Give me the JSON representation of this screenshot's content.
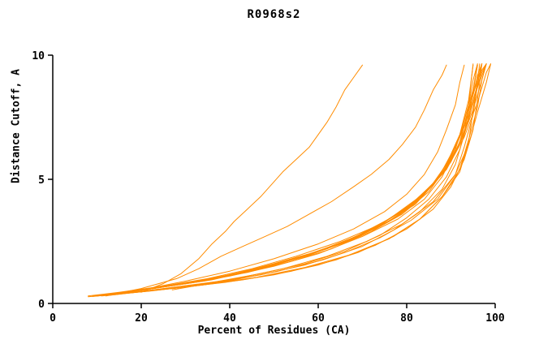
{
  "chart_data": {
    "type": "line",
    "title": "R0968s2",
    "xlabel": "Percent of Residues (CA)",
    "ylabel": "Distance Cutoff, A",
    "xlim": [
      0,
      100
    ],
    "ylim": [
      0,
      10
    ],
    "x_ticks": [
      0,
      20,
      40,
      60,
      80,
      100
    ],
    "y_ticks": [
      0,
      5,
      10
    ],
    "grid": false,
    "legend": "none",
    "line_color": "#ff8c00",
    "axis_color": "#000000",
    "series": [
      [
        [
          20,
          0.45
        ],
        [
          25,
          0.8
        ],
        [
          29,
          1.2
        ],
        [
          33,
          1.8
        ],
        [
          36,
          2.4
        ],
        [
          39,
          2.9
        ],
        [
          41,
          3.3
        ],
        [
          44,
          3.8
        ],
        [
          47,
          4.3
        ],
        [
          50,
          4.9
        ],
        [
          52,
          5.3
        ],
        [
          55,
          5.8
        ],
        [
          58,
          6.3
        ],
        [
          60,
          6.8
        ],
        [
          62,
          7.3
        ],
        [
          64,
          7.9
        ],
        [
          66,
          8.6
        ],
        [
          68,
          9.1
        ],
        [
          70,
          9.6
        ]
      ],
      [
        [
          13,
          0.35
        ],
        [
          20,
          0.6
        ],
        [
          28,
          1.0
        ],
        [
          33,
          1.4
        ],
        [
          38,
          1.9
        ],
        [
          43,
          2.3
        ],
        [
          48,
          2.7
        ],
        [
          53,
          3.1
        ],
        [
          58,
          3.6
        ],
        [
          63,
          4.1
        ],
        [
          68,
          4.7
        ],
        [
          72,
          5.2
        ],
        [
          76,
          5.8
        ],
        [
          79,
          6.4
        ],
        [
          82,
          7.1
        ],
        [
          84,
          7.8
        ],
        [
          86,
          8.6
        ],
        [
          88,
          9.2
        ],
        [
          89,
          9.6
        ]
      ],
      [
        [
          12,
          0.3
        ],
        [
          20,
          0.55
        ],
        [
          30,
          0.9
        ],
        [
          40,
          1.3
        ],
        [
          50,
          1.8
        ],
        [
          60,
          2.4
        ],
        [
          68,
          3.0
        ],
        [
          75,
          3.7
        ],
        [
          80,
          4.4
        ],
        [
          84,
          5.2
        ],
        [
          87,
          6.1
        ],
        [
          89,
          7.0
        ],
        [
          91,
          8.0
        ],
        [
          92,
          8.9
        ],
        [
          93,
          9.6
        ]
      ],
      [
        [
          8,
          0.3
        ],
        [
          15,
          0.45
        ],
        [
          25,
          0.7
        ],
        [
          35,
          1.0
        ],
        [
          45,
          1.4
        ],
        [
          55,
          1.9
        ],
        [
          65,
          2.5
        ],
        [
          73,
          3.1
        ],
        [
          80,
          3.8
        ],
        [
          85,
          4.6
        ],
        [
          89,
          5.6
        ],
        [
          92,
          6.8
        ],
        [
          94,
          8.2
        ],
        [
          95,
          9.6
        ]
      ],
      [
        [
          9,
          0.3
        ],
        [
          18,
          0.5
        ],
        [
          28,
          0.75
        ],
        [
          38,
          1.05
        ],
        [
          48,
          1.45
        ],
        [
          58,
          1.95
        ],
        [
          67,
          2.55
        ],
        [
          75,
          3.2
        ],
        [
          82,
          4.0
        ],
        [
          87,
          5.0
        ],
        [
          90,
          6.0
        ],
        [
          93,
          7.2
        ],
        [
          95,
          8.5
        ],
        [
          96,
          9.6
        ]
      ],
      [
        [
          10,
          0.32
        ],
        [
          20,
          0.55
        ],
        [
          30,
          0.8
        ],
        [
          40,
          1.1
        ],
        [
          50,
          1.5
        ],
        [
          60,
          2.0
        ],
        [
          70,
          2.7
        ],
        [
          78,
          3.4
        ],
        [
          84,
          4.2
        ],
        [
          88,
          5.1
        ],
        [
          91,
          6.2
        ],
        [
          93,
          7.4
        ],
        [
          95,
          8.6
        ],
        [
          96,
          9.6
        ]
      ],
      [
        [
          11,
          0.33
        ],
        [
          22,
          0.6
        ],
        [
          33,
          0.9
        ],
        [
          44,
          1.25
        ],
        [
          54,
          1.7
        ],
        [
          63,
          2.2
        ],
        [
          72,
          2.9
        ],
        [
          79,
          3.6
        ],
        [
          85,
          4.5
        ],
        [
          89,
          5.5
        ],
        [
          92,
          6.7
        ],
        [
          94,
          8.0
        ],
        [
          95,
          9.0
        ],
        [
          96,
          9.65
        ]
      ],
      [
        [
          12,
          0.35
        ],
        [
          24,
          0.65
        ],
        [
          36,
          1.0
        ],
        [
          46,
          1.4
        ],
        [
          56,
          1.85
        ],
        [
          65,
          2.4
        ],
        [
          74,
          3.1
        ],
        [
          81,
          3.9
        ],
        [
          86,
          4.8
        ],
        [
          90,
          5.9
        ],
        [
          93,
          7.1
        ],
        [
          95,
          8.4
        ],
        [
          96,
          9.2
        ],
        [
          97,
          9.65
        ]
      ],
      [
        [
          13,
          0.35
        ],
        [
          26,
          0.7
        ],
        [
          38,
          1.05
        ],
        [
          48,
          1.5
        ],
        [
          58,
          2.0
        ],
        [
          68,
          2.6
        ],
        [
          76,
          3.3
        ],
        [
          83,
          4.2
        ],
        [
          88,
          5.2
        ],
        [
          91,
          6.3
        ],
        [
          94,
          7.6
        ],
        [
          96,
          8.8
        ],
        [
          97,
          9.65
        ]
      ],
      [
        [
          14,
          0.38
        ],
        [
          28,
          0.75
        ],
        [
          40,
          1.15
        ],
        [
          50,
          1.6
        ],
        [
          60,
          2.1
        ],
        [
          70,
          2.8
        ],
        [
          78,
          3.5
        ],
        [
          84,
          4.4
        ],
        [
          89,
          5.4
        ],
        [
          92,
          6.5
        ],
        [
          94,
          7.8
        ],
        [
          96,
          9.0
        ],
        [
          97,
          9.65
        ]
      ],
      [
        [
          15,
          0.4
        ],
        [
          30,
          0.8
        ],
        [
          42,
          1.2
        ],
        [
          52,
          1.65
        ],
        [
          62,
          2.2
        ],
        [
          71,
          2.9
        ],
        [
          79,
          3.7
        ],
        [
          85,
          4.6
        ],
        [
          90,
          5.7
        ],
        [
          93,
          6.9
        ],
        [
          95,
          8.2
        ],
        [
          97,
          9.3
        ],
        [
          98,
          9.65
        ]
      ],
      [
        [
          16,
          0.42
        ],
        [
          32,
          0.85
        ],
        [
          44,
          1.3
        ],
        [
          54,
          1.75
        ],
        [
          64,
          2.35
        ],
        [
          73,
          3.05
        ],
        [
          80,
          3.85
        ],
        [
          86,
          4.8
        ],
        [
          90,
          5.9
        ],
        [
          93,
          7.2
        ],
        [
          95,
          8.5
        ],
        [
          97,
          9.4
        ],
        [
          98,
          9.65
        ]
      ],
      [
        [
          17,
          0.45
        ],
        [
          34,
          0.9
        ],
        [
          46,
          1.35
        ],
        [
          56,
          1.85
        ],
        [
          66,
          2.45
        ],
        [
          74,
          3.15
        ],
        [
          81,
          4.0
        ],
        [
          87,
          5.0
        ],
        [
          91,
          6.1
        ],
        [
          94,
          7.4
        ],
        [
          96,
          8.7
        ],
        [
          98,
          9.65
        ]
      ],
      [
        [
          18,
          0.48
        ],
        [
          36,
          0.95
        ],
        [
          48,
          1.45
        ],
        [
          58,
          1.95
        ],
        [
          67,
          2.55
        ],
        [
          75,
          3.3
        ],
        [
          82,
          4.1
        ],
        [
          88,
          5.2
        ],
        [
          92,
          6.4
        ],
        [
          95,
          7.8
        ],
        [
          97,
          9.0
        ],
        [
          98,
          9.65
        ]
      ],
      [
        [
          19,
          0.5
        ],
        [
          37,
          1.0
        ],
        [
          49,
          1.5
        ],
        [
          59,
          2.05
        ],
        [
          68,
          2.65
        ],
        [
          76,
          3.4
        ],
        [
          83,
          4.3
        ],
        [
          89,
          5.4
        ],
        [
          93,
          6.7
        ],
        [
          96,
          8.1
        ],
        [
          98,
          9.3
        ],
        [
          99,
          9.65
        ]
      ],
      [
        [
          27,
          0.55
        ],
        [
          40,
          0.95
        ],
        [
          52,
          1.4
        ],
        [
          62,
          1.9
        ],
        [
          71,
          2.5
        ],
        [
          79,
          3.2
        ],
        [
          86,
          4.1
        ],
        [
          91,
          5.2
        ],
        [
          94,
          6.4
        ],
        [
          96,
          7.7
        ],
        [
          98,
          8.9
        ],
        [
          99,
          9.65
        ]
      ],
      [
        [
          10,
          0.3
        ],
        [
          22,
          0.5
        ],
        [
          34,
          0.75
        ],
        [
          46,
          1.05
        ],
        [
          57,
          1.45
        ],
        [
          67,
          1.95
        ],
        [
          76,
          2.6
        ],
        [
          83,
          3.4
        ],
        [
          88,
          4.3
        ],
        [
          92,
          5.4
        ],
        [
          94,
          6.6
        ],
        [
          96,
          7.9
        ],
        [
          97,
          9.0
        ],
        [
          98,
          9.65
        ]
      ],
      [
        [
          9,
          0.28
        ],
        [
          19,
          0.45
        ],
        [
          31,
          0.68
        ],
        [
          43,
          0.95
        ],
        [
          54,
          1.3
        ],
        [
          64,
          1.75
        ],
        [
          73,
          2.35
        ],
        [
          80,
          3.0
        ],
        [
          86,
          3.8
        ],
        [
          90,
          4.7
        ],
        [
          93,
          5.8
        ],
        [
          95,
          7.0
        ],
        [
          96,
          8.2
        ],
        [
          97,
          9.65
        ]
      ],
      [
        [
          8,
          0.27
        ],
        [
          16,
          0.4
        ],
        [
          27,
          0.6
        ],
        [
          39,
          0.85
        ],
        [
          50,
          1.15
        ],
        [
          60,
          1.55
        ],
        [
          69,
          2.05
        ],
        [
          77,
          2.7
        ],
        [
          83,
          3.4
        ],
        [
          88,
          4.3
        ],
        [
          92,
          5.3
        ],
        [
          94,
          6.5
        ],
        [
          95,
          7.8
        ],
        [
          96,
          9.0
        ],
        [
          96.5,
          9.65
        ]
      ],
      [
        [
          11,
          0.3
        ],
        [
          23,
          0.55
        ],
        [
          35,
          0.82
        ],
        [
          47,
          1.15
        ],
        [
          57,
          1.55
        ],
        [
          66,
          2.05
        ],
        [
          74,
          2.65
        ],
        [
          81,
          3.35
        ],
        [
          87,
          4.2
        ],
        [
          91,
          5.2
        ],
        [
          93,
          6.3
        ],
        [
          95,
          7.6
        ],
        [
          96,
          8.8
        ],
        [
          97,
          9.65
        ]
      ],
      [
        [
          14,
          0.35
        ],
        [
          29,
          0.65
        ],
        [
          41,
          0.95
        ],
        [
          51,
          1.3
        ],
        [
          61,
          1.75
        ],
        [
          70,
          2.3
        ],
        [
          77,
          2.95
        ],
        [
          83,
          3.7
        ],
        [
          88,
          4.6
        ],
        [
          91,
          5.6
        ],
        [
          93,
          6.8
        ],
        [
          94,
          8.0
        ],
        [
          95,
          9.65
        ]
      ],
      [
        [
          13,
          0.33
        ],
        [
          25,
          0.6
        ],
        [
          37,
          0.88
        ],
        [
          47,
          1.2
        ],
        [
          57,
          1.6
        ],
        [
          66,
          2.1
        ],
        [
          74,
          2.75
        ],
        [
          80,
          3.45
        ],
        [
          85,
          4.2
        ],
        [
          89,
          5.1
        ],
        [
          92,
          6.2
        ],
        [
          94,
          7.4
        ],
        [
          95,
          8.6
        ],
        [
          96,
          9.65
        ]
      ]
    ]
  }
}
